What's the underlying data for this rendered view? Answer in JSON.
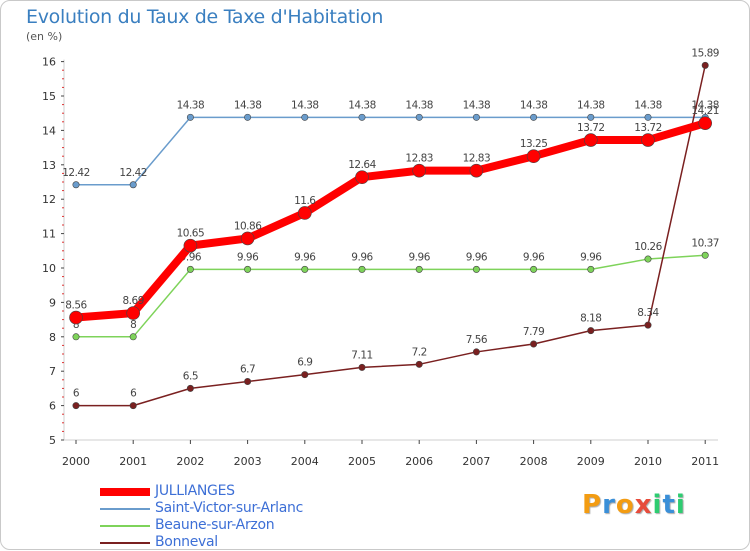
{
  "title": "Evolution du Taux de Taxe d'Habitation",
  "subtitle": "(en %)",
  "logo": {
    "text": "Proxiti",
    "colors": [
      "#f39c12",
      "#3a8fd8",
      "#f39c12",
      "#e74c3c",
      "#2ecc71",
      "#3a8fd8",
      "#2ecc71"
    ]
  },
  "chart_data": {
    "type": "line",
    "categories": [
      "2000",
      "2001",
      "2002",
      "2003",
      "2004",
      "2005",
      "2006",
      "2007",
      "2008",
      "2009",
      "2010",
      "2011"
    ],
    "ylim": [
      5,
      16
    ],
    "yticks": [
      5,
      6,
      7,
      8,
      9,
      10,
      11,
      12,
      13,
      14,
      15,
      16
    ],
    "grid": false,
    "legend_position": "bottom-left",
    "series": [
      {
        "name": "JULLIANGES",
        "color": "#ff0000",
        "values": [
          8.56,
          8.69,
          10.65,
          10.86,
          11.6,
          12.64,
          12.83,
          12.83,
          13.25,
          13.72,
          13.72,
          14.21
        ],
        "labels": [
          "8.56",
          "8.69",
          "10.65",
          "10.86",
          "11.6",
          "12.64",
          "12.83",
          "12.83",
          "13.25",
          "13.72",
          "13.72",
          "14.21"
        ]
      },
      {
        "name": "Saint-Victor-sur-Arlanc",
        "color": "#6a9ccc",
        "values": [
          12.42,
          12.42,
          14.38,
          14.38,
          14.38,
          14.38,
          14.38,
          14.38,
          14.38,
          14.38,
          14.38,
          14.38
        ],
        "labels": [
          "12.42",
          "12.42",
          "14.38",
          "14.38",
          "14.38",
          "14.38",
          "14.38",
          "14.38",
          "14.38",
          "14.38",
          "14.38",
          "14.38"
        ]
      },
      {
        "name": "Beaune-sur-Arzon",
        "color": "#7ed35a",
        "values": [
          8,
          8,
          9.96,
          9.96,
          9.96,
          9.96,
          9.96,
          9.96,
          9.96,
          9.96,
          10.26,
          10.37
        ],
        "labels": [
          "8",
          "8",
          "9.96",
          "9.96",
          "9.96",
          "9.96",
          "9.96",
          "9.96",
          "9.96",
          "9.96",
          "10.26",
          "10.37"
        ]
      },
      {
        "name": "Bonneval",
        "color": "#7a2020",
        "values": [
          6,
          6,
          6.5,
          6.7,
          6.9,
          7.11,
          7.2,
          7.56,
          7.79,
          8.18,
          8.34,
          15.89
        ],
        "labels": [
          "6",
          "6",
          "6.5",
          "6.7",
          "6.9",
          "7.11",
          "7.2",
          "7.56",
          "7.79",
          "8.18",
          "8.34",
          "15.89"
        ]
      }
    ]
  }
}
